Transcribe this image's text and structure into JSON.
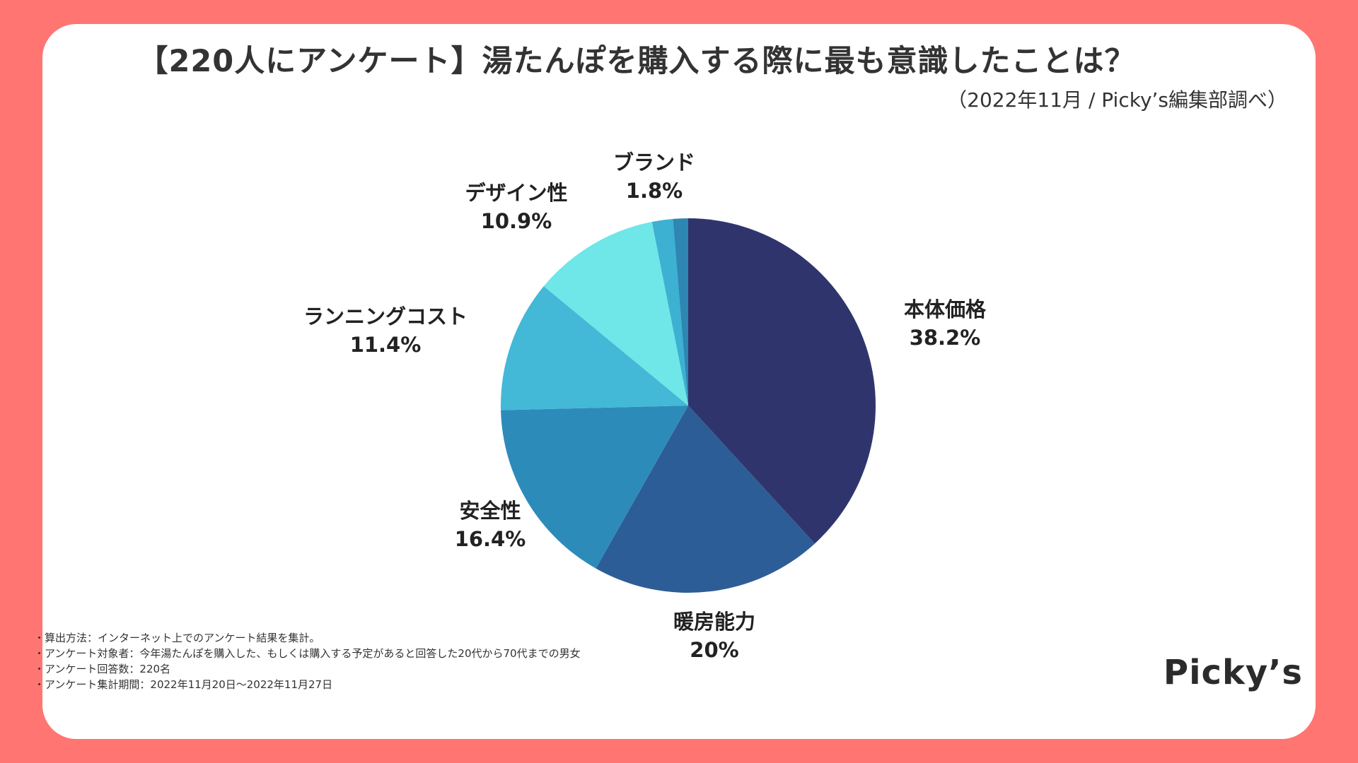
{
  "title": "【220人にアンケート】湯たんぽを購入する際に最も意識したことは？",
  "subtitle": "（2022年11月 / Picky’s編集部調べ）",
  "chart_data": {
    "type": "pie",
    "title": "【220人にアンケート】湯たんぽを購入する際に最も意識したことは？",
    "slices": [
      {
        "label": "本体価格",
        "value": 38.2,
        "display": "38.2%",
        "color": "#2F356C"
      },
      {
        "label": "暖房能力",
        "value": 20,
        "display": "20%",
        "color": "#2D5D96"
      },
      {
        "label": "安全性",
        "value": 16.4,
        "display": "16.4%",
        "color": "#2D8BBA"
      },
      {
        "label": "ランニングコスト",
        "value": 11.4,
        "display": "11.4%",
        "color": "#43B8D7"
      },
      {
        "label": "デザイン性",
        "value": 10.9,
        "display": "10.9%",
        "color": "#6FE6E8"
      },
      {
        "label": "ブランド",
        "value": 1.8,
        "display": "1.8%",
        "color": "#3CB1D1"
      },
      {
        "label": "",
        "value": 1.3,
        "display": "",
        "color": "#2E86B3"
      }
    ]
  },
  "notes": [
    "・算出方法：インターネット上でのアンケート結果を集計。",
    "・アンケート対象者：今年湯たんぽを購入した、もしくは購入する予定があると回答した20代から70代までの男女",
    "・アンケート回答数：220名",
    "・アンケート集計期間：2022年11月20日〜2022年11月27日"
  ],
  "logo": "Picky’s"
}
